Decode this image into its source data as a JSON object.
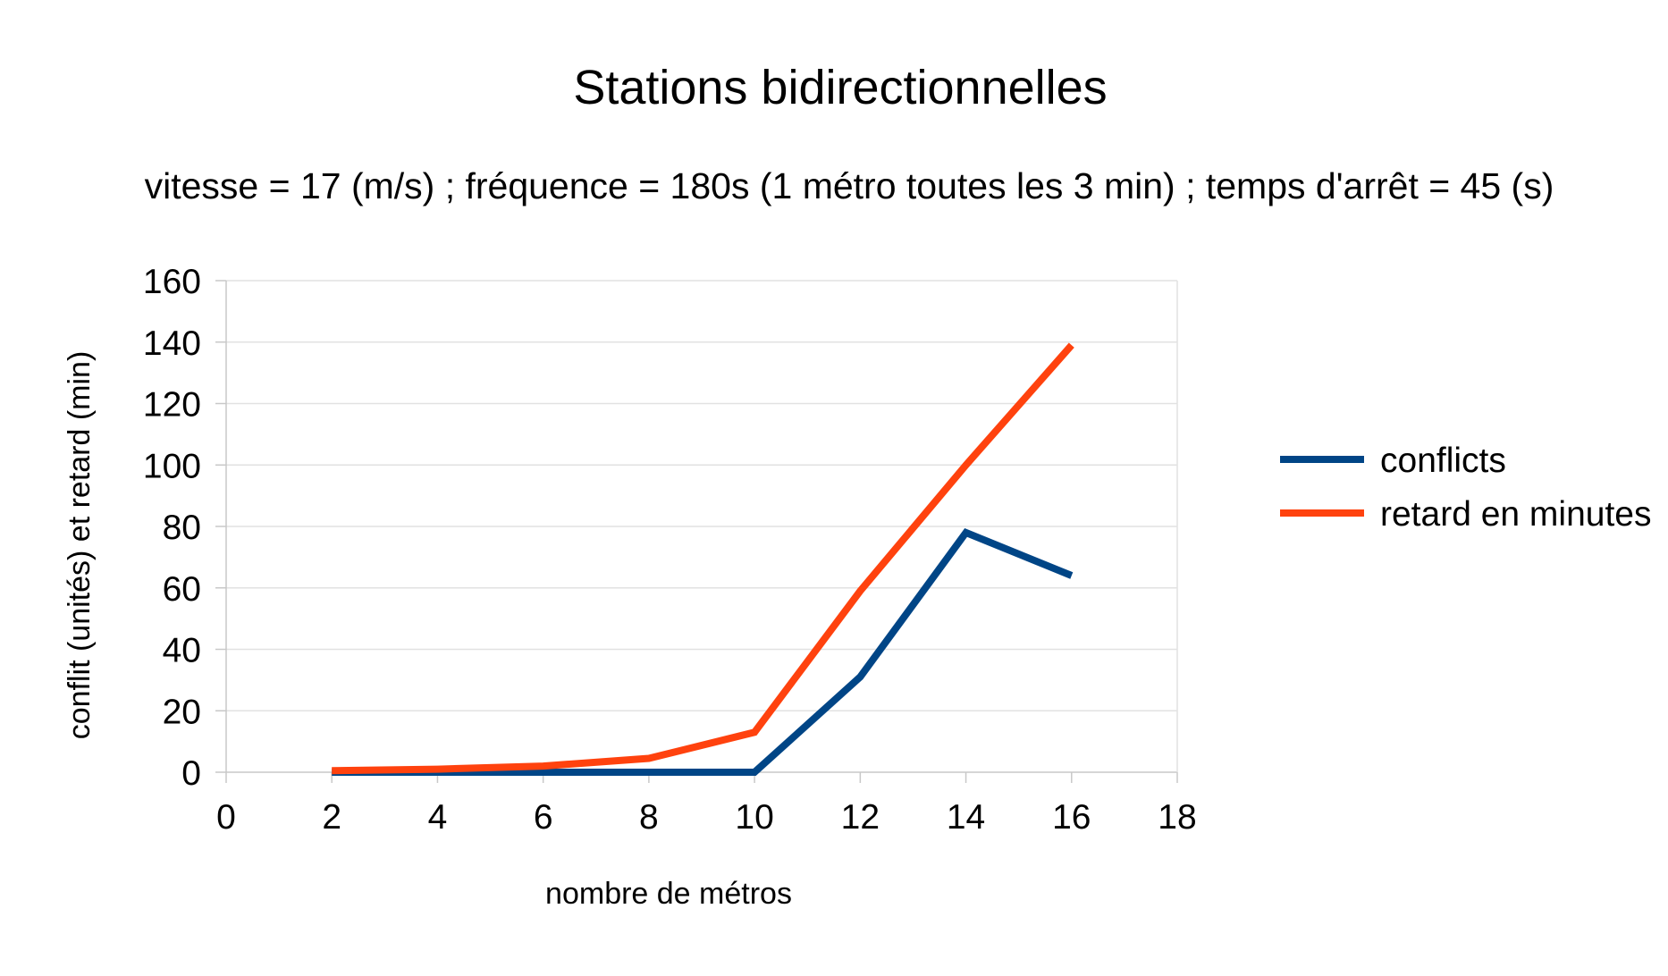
{
  "chart_data": {
    "type": "line",
    "title": "Stations bidirectionnelles",
    "subtitle": "vitesse = 17 (m/s) ; fréquence = 180s (1 métro toutes les 3 min) ; temps d'arrêt = 45 (s)",
    "xlabel": "nombre de métros",
    "ylabel": "conflit (unités) et retard (min)",
    "xlim": [
      0,
      18
    ],
    "ylim": [
      0,
      160
    ],
    "xticks": [
      0,
      2,
      4,
      6,
      8,
      10,
      12,
      14,
      16,
      18
    ],
    "yticks": [
      0,
      20,
      40,
      60,
      80,
      100,
      120,
      140,
      160
    ],
    "grid": true,
    "legend_position": "right",
    "x": [
      2,
      4,
      6,
      8,
      10,
      12,
      14,
      16
    ],
    "series": [
      {
        "name": "conflicts",
        "color": "#004586",
        "values": [
          0,
          0,
          0,
          0,
          0,
          31,
          78,
          64
        ]
      },
      {
        "name": "retard en minutes",
        "color": "#ff420e",
        "values": [
          0.5,
          1,
          2,
          4.5,
          13,
          59,
          100,
          139
        ]
      }
    ]
  }
}
